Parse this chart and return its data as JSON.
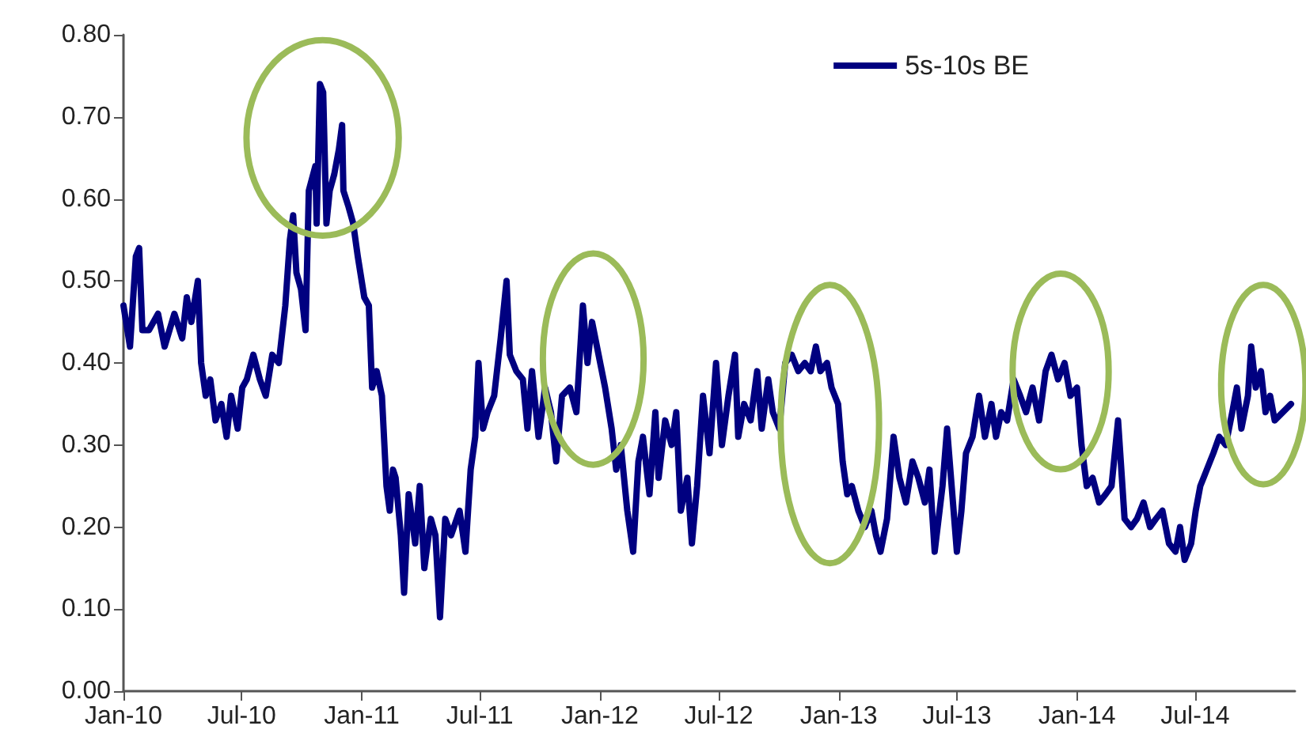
{
  "chart_data": {
    "type": "line",
    "x": [
      "2010-01-01",
      "2010-01-11",
      "2010-01-20",
      "2010-01-25",
      "2010-01-30",
      "2010-02-09",
      "2010-02-23",
      "2010-03-05",
      "2010-03-20",
      "2010-04-01",
      "2010-04-08",
      "2010-04-15",
      "2010-04-25",
      "2010-04-30",
      "2010-05-07",
      "2010-05-14",
      "2010-05-22",
      "2010-05-31",
      "2010-06-08",
      "2010-06-15",
      "2010-06-25",
      "2010-07-02",
      "2010-07-09",
      "2010-07-19",
      "2010-07-29",
      "2010-08-07",
      "2010-08-17",
      "2010-08-27",
      "2010-09-06",
      "2010-09-13",
      "2010-09-18",
      "2010-09-23",
      "2010-09-30",
      "2010-10-07",
      "2010-10-12",
      "2010-10-22",
      "2010-10-24",
      "2010-10-29",
      "2010-11-03",
      "2010-11-08",
      "2010-11-13",
      "2010-11-20",
      "2010-11-27",
      "2010-12-02",
      "2010-12-04",
      "2010-12-12",
      "2010-12-19",
      "2010-12-26",
      "2011-01-05",
      "2011-01-12",
      "2011-01-17",
      "2011-01-24",
      "2011-02-01",
      "2011-02-08",
      "2011-02-13",
      "2011-02-18",
      "2011-02-22",
      "2011-03-02",
      "2011-03-07",
      "2011-03-14",
      "2011-03-24",
      "2011-03-31",
      "2011-04-07",
      "2011-04-17",
      "2011-04-24",
      "2011-05-01",
      "2011-05-09",
      "2011-05-18",
      "2011-05-31",
      "2011-06-09",
      "2011-06-17",
      "2011-06-24",
      "2011-06-29",
      "2011-07-06",
      "2011-07-13",
      "2011-07-23",
      "2011-08-02",
      "2011-08-11",
      "2011-08-16",
      "2011-08-26",
      "2011-09-05",
      "2011-09-12",
      "2011-09-19",
      "2011-09-29",
      "2011-10-09",
      "2011-10-18",
      "2011-10-26",
      "2011-11-04",
      "2011-11-16",
      "2011-11-26",
      "2011-12-06",
      "2011-12-13",
      "2011-12-20",
      "2011-12-30",
      "2012-01-09",
      "2012-01-19",
      "2012-01-26",
      "2012-02-02",
      "2012-02-12",
      "2012-02-21",
      "2012-02-29",
      "2012-03-07",
      "2012-03-17",
      "2012-03-26",
      "2012-03-31",
      "2012-04-10",
      "2012-04-20",
      "2012-04-27",
      "2012-05-04",
      "2012-05-14",
      "2012-05-21",
      "2012-05-29",
      "2012-06-07",
      "2012-06-17",
      "2012-06-27",
      "2012-07-06",
      "2012-07-16",
      "2012-07-26",
      "2012-07-31",
      "2012-08-09",
      "2012-08-19",
      "2012-08-29",
      "2012-09-05",
      "2012-09-15",
      "2012-09-22",
      "2012-10-02",
      "2012-10-11",
      "2012-10-21",
      "2012-10-31",
      "2012-11-10",
      "2012-11-19",
      "2012-11-27",
      "2012-12-04",
      "2012-12-14",
      "2012-12-21",
      "2012-12-31",
      "2013-01-07",
      "2013-01-14",
      "2013-01-21",
      "2013-01-31",
      "2013-02-10",
      "2013-02-20",
      "2013-02-27",
      "2013-03-06",
      "2013-03-16",
      "2013-03-26",
      "2013-04-04",
      "2013-04-14",
      "2013-04-24",
      "2013-05-03",
      "2013-05-13",
      "2013-05-20",
      "2013-05-28",
      "2013-06-09",
      "2013-06-16",
      "2013-06-23",
      "2013-07-01",
      "2013-07-08",
      "2013-07-15",
      "2013-07-25",
      "2013-08-04",
      "2013-08-13",
      "2013-08-23",
      "2013-08-30",
      "2013-09-07",
      "2013-09-16",
      "2013-09-26",
      "2013-10-06",
      "2013-10-15",
      "2013-10-25",
      "2013-11-04",
      "2013-11-14",
      "2013-11-23",
      "2013-12-03",
      "2013-12-13",
      "2013-12-22",
      "2014-01-01",
      "2014-01-08",
      "2014-01-16",
      "2014-01-25",
      "2014-02-04",
      "2014-02-14",
      "2014-02-23",
      "2014-03-05",
      "2014-03-15",
      "2014-03-25",
      "2014-04-03",
      "2014-04-13",
      "2014-04-23",
      "2014-05-02",
      "2014-05-12",
      "2014-05-22",
      "2014-06-01",
      "2014-06-08",
      "2014-06-15",
      "2014-06-25",
      "2014-07-02",
      "2014-07-09",
      "2014-07-19",
      "2014-07-29",
      "2014-08-07",
      "2014-08-17",
      "2014-08-27",
      "2014-09-03",
      "2014-09-10",
      "2014-09-20",
      "2014-09-25",
      "2014-10-02",
      "2014-10-10",
      "2014-10-17",
      "2014-10-24",
      "2014-10-31",
      "2014-11-25"
    ],
    "series": [
      {
        "name": "5s-10s BE",
        "color": "#000080",
        "values": [
          0.47,
          0.42,
          0.53,
          0.54,
          0.44,
          0.44,
          0.46,
          0.42,
          0.46,
          0.43,
          0.48,
          0.45,
          0.5,
          0.4,
          0.36,
          0.38,
          0.33,
          0.35,
          0.31,
          0.36,
          0.32,
          0.37,
          0.38,
          0.41,
          0.38,
          0.36,
          0.41,
          0.4,
          0.47,
          0.55,
          0.58,
          0.51,
          0.49,
          0.44,
          0.61,
          0.64,
          0.57,
          0.74,
          0.73,
          0.57,
          0.61,
          0.63,
          0.66,
          0.69,
          0.61,
          0.59,
          0.57,
          0.53,
          0.48,
          0.47,
          0.37,
          0.39,
          0.36,
          0.25,
          0.22,
          0.27,
          0.26,
          0.19,
          0.12,
          0.24,
          0.18,
          0.25,
          0.15,
          0.21,
          0.19,
          0.09,
          0.21,
          0.19,
          0.22,
          0.17,
          0.27,
          0.31,
          0.4,
          0.32,
          0.34,
          0.36,
          0.43,
          0.5,
          0.41,
          0.39,
          0.38,
          0.32,
          0.39,
          0.31,
          0.37,
          0.34,
          0.28,
          0.36,
          0.37,
          0.34,
          0.47,
          0.4,
          0.45,
          0.41,
          0.37,
          0.32,
          0.27,
          0.3,
          0.22,
          0.17,
          0.28,
          0.31,
          0.24,
          0.34,
          0.26,
          0.33,
          0.3,
          0.34,
          0.22,
          0.26,
          0.18,
          0.25,
          0.36,
          0.29,
          0.4,
          0.3,
          0.36,
          0.41,
          0.31,
          0.35,
          0.33,
          0.39,
          0.32,
          0.38,
          0.34,
          0.32,
          0.4,
          0.41,
          0.39,
          0.4,
          0.39,
          0.42,
          0.39,
          0.4,
          0.37,
          0.35,
          0.28,
          0.24,
          0.25,
          0.22,
          0.2,
          0.22,
          0.19,
          0.17,
          0.21,
          0.31,
          0.26,
          0.23,
          0.28,
          0.26,
          0.23,
          0.27,
          0.17,
          0.25,
          0.32,
          0.25,
          0.17,
          0.22,
          0.29,
          0.31,
          0.36,
          0.31,
          0.35,
          0.31,
          0.34,
          0.33,
          0.38,
          0.36,
          0.34,
          0.37,
          0.33,
          0.39,
          0.41,
          0.38,
          0.4,
          0.36,
          0.37,
          0.3,
          0.25,
          0.26,
          0.23,
          0.24,
          0.25,
          0.33,
          0.21,
          0.2,
          0.21,
          0.23,
          0.2,
          0.21,
          0.22,
          0.18,
          0.17,
          0.2,
          0.16,
          0.18,
          0.22,
          0.25,
          0.27,
          0.29,
          0.31,
          0.3,
          0.34,
          0.37,
          0.32,
          0.36,
          0.42,
          0.37,
          0.39,
          0.34,
          0.36,
          0.33,
          0.35
        ]
      }
    ],
    "xlim": [
      "2010-01-01",
      "2014-12-01"
    ],
    "xticks": [
      {
        "value": "2010-01-01",
        "label": "Jan-10"
      },
      {
        "value": "2010-07-01",
        "label": "Jul-10"
      },
      {
        "value": "2011-01-01",
        "label": "Jan-11"
      },
      {
        "value": "2011-07-01",
        "label": "Jul-11"
      },
      {
        "value": "2012-01-01",
        "label": "Jan-12"
      },
      {
        "value": "2012-07-01",
        "label": "Jul-12"
      },
      {
        "value": "2013-01-01",
        "label": "Jan-13"
      },
      {
        "value": "2013-07-01",
        "label": "Jul-13"
      },
      {
        "value": "2014-01-01",
        "label": "Jan-14"
      },
      {
        "value": "2014-07-01",
        "label": "Jul-14"
      }
    ],
    "ylim": [
      0,
      0.8
    ],
    "yticks": [
      {
        "value": 0,
        "label": "0.00"
      },
      {
        "value": 0.1,
        "label": "0.10"
      },
      {
        "value": 0.2,
        "label": "0.20"
      },
      {
        "value": 0.3,
        "label": "0.30"
      },
      {
        "value": 0.4,
        "label": "0.40"
      },
      {
        "value": 0.5,
        "label": "0.50"
      },
      {
        "value": 0.6,
        "label": "0.60"
      },
      {
        "value": 0.7,
        "label": "0.70"
      },
      {
        "value": 0.8,
        "label": "0.80"
      }
    ],
    "legend": "top right",
    "grid": false,
    "marker": "none",
    "line_style": "solid"
  }
}
